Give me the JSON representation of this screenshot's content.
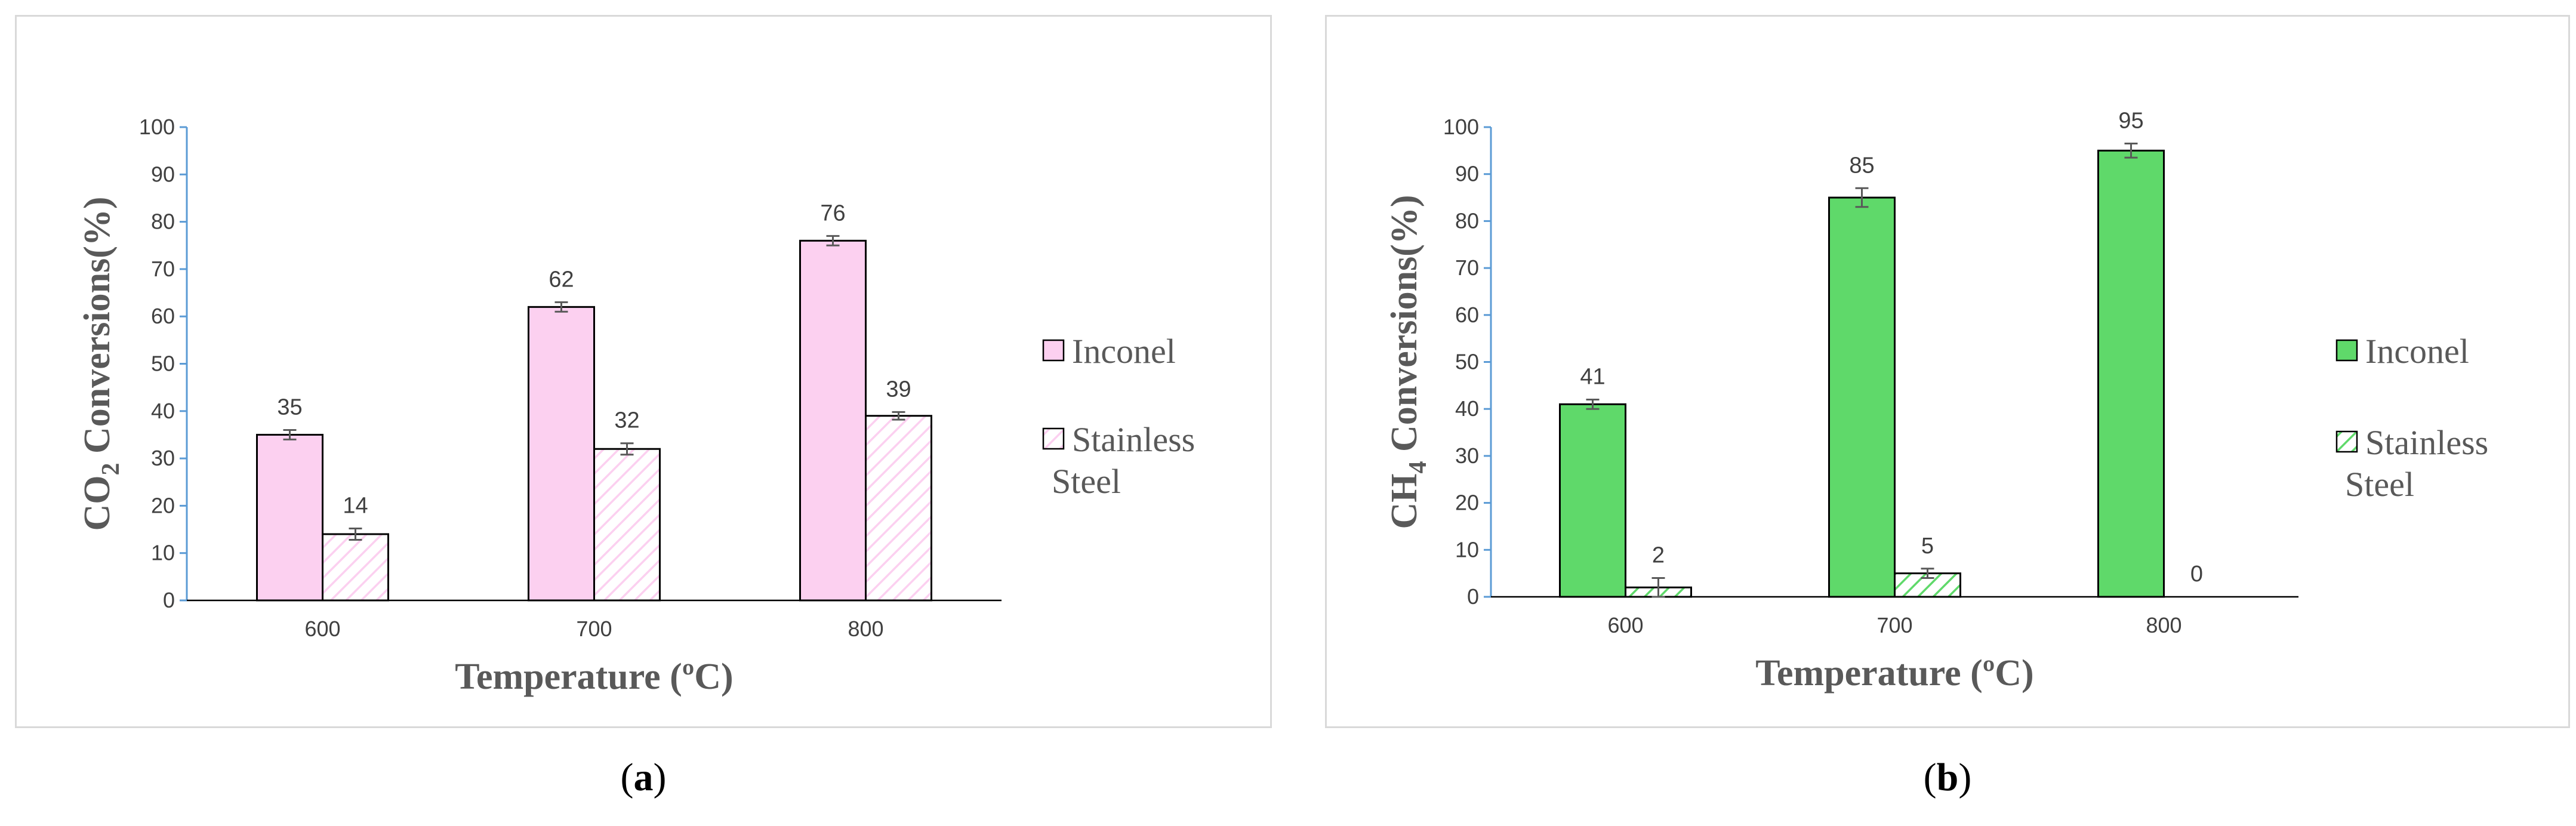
{
  "chart_data": [
    {
      "type": "bar",
      "panel_label": "a",
      "categories": [
        "600",
        "700",
        "800"
      ],
      "series": [
        {
          "name": "Inconel",
          "values": [
            35,
            62,
            76
          ],
          "value_labels": [
            "35",
            "62",
            "76"
          ],
          "error": [
            1,
            1,
            1
          ],
          "color": "#fcd0f0",
          "pattern": "solid"
        },
        {
          "name": "Stainless Steel",
          "values": [
            14,
            32,
            39
          ],
          "value_labels": [
            "14",
            "32",
            "39"
          ],
          "error": [
            1.2,
            1.2,
            0.8
          ],
          "color": "#fcd0f0",
          "pattern": "hatched"
        }
      ],
      "legend_lines": [
        [
          "Inconel"
        ],
        [
          "Stainless",
          "Steel"
        ]
      ],
      "legend_position": "right",
      "xlabel": "Temperature (ºC)",
      "ylabel_main": "CO",
      "ylabel_sub": "2",
      "ylabel_rest": " Conversions(%)",
      "yticks": [
        "0",
        "10",
        "20",
        "30",
        "40",
        "50",
        "60",
        "70",
        "80",
        "90",
        "100"
      ],
      "ylim": [
        0,
        100
      ],
      "grid": false
    },
    {
      "type": "bar",
      "panel_label": "b",
      "categories": [
        "600",
        "700",
        "800"
      ],
      "series": [
        {
          "name": "Inconel",
          "values": [
            41,
            85,
            95
          ],
          "value_labels": [
            "41",
            "85",
            "95"
          ],
          "error": [
            1,
            2,
            1.5
          ],
          "color": "#5fd96a",
          "pattern": "solid"
        },
        {
          "name": "Stainless Steel",
          "values": [
            2,
            5,
            0
          ],
          "value_labels": [
            "2",
            "5",
            "0"
          ],
          "error": [
            2,
            1,
            0
          ],
          "color": "#5fd96a",
          "pattern": "hatched"
        }
      ],
      "legend_lines": [
        [
          "Inconel"
        ],
        [
          "Stainless",
          "Steel"
        ]
      ],
      "legend_position": "right",
      "xlabel": "Temperature (ºC)",
      "ylabel_main": "CH",
      "ylabel_sub": "4",
      "ylabel_rest": " Conversions(%)",
      "yticks": [
        "0",
        "10",
        "20",
        "30",
        "40",
        "50",
        "60",
        "70",
        "80",
        "90",
        "100"
      ],
      "ylim": [
        0,
        100
      ],
      "grid": false
    }
  ]
}
